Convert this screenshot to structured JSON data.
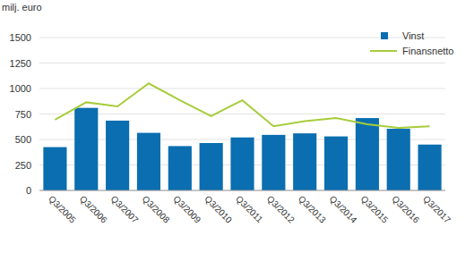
{
  "chart_data": {
    "type": "bar",
    "y_label": "milj. euro",
    "categories": [
      "Q3/2005",
      "Q3/2006",
      "Q3/2007",
      "Q3/2008",
      "Q3/2009",
      "Q3/2010",
      "Q3/2011",
      "Q3/2012",
      "Q3/2013",
      "Q3/2014",
      "Q3/2015",
      "Q3/2016",
      "Q3/2017"
    ],
    "series": [
      {
        "name": "Vinst",
        "type": "bar",
        "color": "#0a6eb0",
        "values": [
          425,
          810,
          685,
          565,
          435,
          465,
          520,
          545,
          560,
          530,
          710,
          605,
          450
        ]
      },
      {
        "name": "Finansnetto",
        "type": "line",
        "color": "#a8cc3c",
        "values": [
          695,
          865,
          825,
          1050,
          885,
          730,
          885,
          630,
          680,
          710,
          650,
          615,
          630
        ]
      }
    ],
    "ylim": [
      0,
      1500
    ],
    "yticks": [
      0,
      250,
      500,
      750,
      1000,
      1250,
      1500
    ],
    "grid": true,
    "legend": "upper right"
  }
}
